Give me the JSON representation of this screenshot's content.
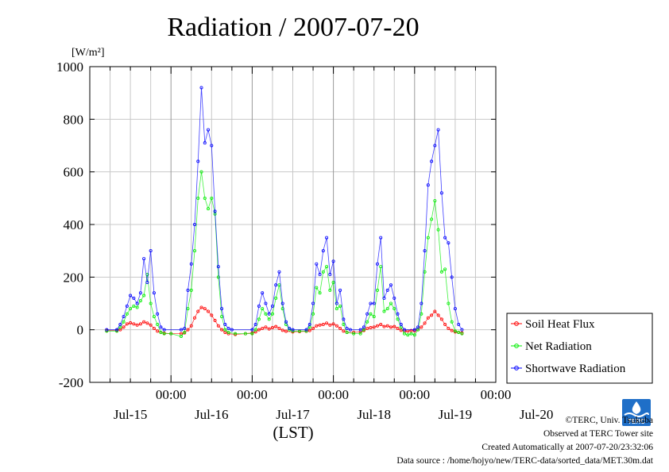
{
  "chart_data": {
    "type": "line",
    "title": "Radiation / 2007-07-20",
    "ylabel_unit": "[W/m²]",
    "xlabel": "(LST)",
    "ylim": [
      -200,
      1000
    ],
    "y_ticks": [
      "-200",
      "0",
      "200",
      "400",
      "600",
      "800",
      "1000"
    ],
    "x_ticks": [
      "00:00",
      "00:00",
      "00:00",
      "00:00",
      "00:00"
    ],
    "x_day_labels": [
      "Jul-15",
      "Jul-16",
      "Jul-17",
      "Jul-18",
      "Jul-19",
      "Jul-20"
    ],
    "grid": true,
    "legend_position": "right",
    "x_unit": "hours since 2007-07-14 00:00 LST",
    "series": [
      {
        "name": "Soil Heat Flux",
        "color": "#ff0000",
        "points": [
          [
            5,
            -3
          ],
          [
            8,
            -3
          ],
          [
            9,
            0
          ],
          [
            10,
            10
          ],
          [
            11,
            22
          ],
          [
            12,
            26
          ],
          [
            13,
            22
          ],
          [
            14,
            18
          ],
          [
            15,
            22
          ],
          [
            16,
            30
          ],
          [
            17,
            25
          ],
          [
            18,
            18
          ],
          [
            19,
            5
          ],
          [
            20,
            -5
          ],
          [
            21,
            -10
          ],
          [
            22,
            -13
          ],
          [
            24,
            -15
          ],
          [
            27,
            -15
          ],
          [
            28,
            -12
          ],
          [
            29,
            0
          ],
          [
            30,
            15
          ],
          [
            31,
            45
          ],
          [
            32,
            70
          ],
          [
            33,
            85
          ],
          [
            34,
            80
          ],
          [
            35,
            70
          ],
          [
            36,
            55
          ],
          [
            37,
            35
          ],
          [
            38,
            15
          ],
          [
            39,
            0
          ],
          [
            40,
            -10
          ],
          [
            41,
            -15
          ],
          [
            43,
            -18
          ],
          [
            46,
            -15
          ],
          [
            48,
            -12
          ],
          [
            49,
            -8
          ],
          [
            50,
            0
          ],
          [
            51,
            5
          ],
          [
            52,
            10
          ],
          [
            53,
            3
          ],
          [
            54,
            8
          ],
          [
            55,
            12
          ],
          [
            56,
            5
          ],
          [
            57,
            -2
          ],
          [
            58,
            -6
          ],
          [
            60,
            -8
          ],
          [
            62,
            -7
          ],
          [
            64,
            -6
          ],
          [
            65,
            -3
          ],
          [
            66,
            5
          ],
          [
            67,
            15
          ],
          [
            68,
            18
          ],
          [
            69,
            20
          ],
          [
            70,
            25
          ],
          [
            71,
            18
          ],
          [
            72,
            22
          ],
          [
            73,
            15
          ],
          [
            74,
            5
          ],
          [
            75,
            -5
          ],
          [
            76,
            -10
          ],
          [
            78,
            -10
          ],
          [
            80,
            -8
          ],
          [
            81,
            -3
          ],
          [
            82,
            5
          ],
          [
            83,
            8
          ],
          [
            84,
            10
          ],
          [
            85,
            15
          ],
          [
            86,
            20
          ],
          [
            87,
            12
          ],
          [
            88,
            15
          ],
          [
            89,
            10
          ],
          [
            90,
            12
          ],
          [
            91,
            5
          ],
          [
            92,
            -2
          ],
          [
            93,
            -5
          ],
          [
            94,
            -5
          ],
          [
            95,
            -3
          ],
          [
            96,
            -4
          ],
          [
            97,
            0
          ],
          [
            98,
            10
          ],
          [
            99,
            25
          ],
          [
            100,
            45
          ],
          [
            101,
            55
          ],
          [
            102,
            70
          ],
          [
            103,
            55
          ],
          [
            104,
            40
          ],
          [
            105,
            20
          ],
          [
            106,
            5
          ],
          [
            107,
            -3
          ],
          [
            108,
            -8
          ],
          [
            109,
            -10
          ],
          [
            110,
            -12
          ]
        ]
      },
      {
        "name": "Net Radiation",
        "color": "#00ee00",
        "points": [
          [
            5,
            -5
          ],
          [
            8,
            -5
          ],
          [
            9,
            10
          ],
          [
            10,
            30
          ],
          [
            11,
            60
          ],
          [
            12,
            80
          ],
          [
            13,
            90
          ],
          [
            14,
            85
          ],
          [
            15,
            110
          ],
          [
            16,
            130
          ],
          [
            17,
            210
          ],
          [
            18,
            100
          ],
          [
            19,
            50
          ],
          [
            20,
            20
          ],
          [
            21,
            -10
          ],
          [
            22,
            -15
          ],
          [
            24,
            -15
          ],
          [
            27,
            -25
          ],
          [
            28,
            -10
          ],
          [
            29,
            80
          ],
          [
            30,
            150
          ],
          [
            31,
            300
          ],
          [
            32,
            500
          ],
          [
            33,
            600
          ],
          [
            34,
            500
          ],
          [
            35,
            460
          ],
          [
            36,
            500
          ],
          [
            37,
            440
          ],
          [
            38,
            200
          ],
          [
            39,
            50
          ],
          [
            40,
            0
          ],
          [
            41,
            -10
          ],
          [
            43,
            -15
          ],
          [
            46,
            -15
          ],
          [
            48,
            -15
          ],
          [
            49,
            0
          ],
          [
            50,
            40
          ],
          [
            51,
            80
          ],
          [
            52,
            60
          ],
          [
            53,
            40
          ],
          [
            54,
            60
          ],
          [
            55,
            120
          ],
          [
            56,
            170
          ],
          [
            57,
            80
          ],
          [
            58,
            20
          ],
          [
            59,
            0
          ],
          [
            60,
            -5
          ],
          [
            62,
            -5
          ],
          [
            64,
            -5
          ],
          [
            65,
            10
          ],
          [
            66,
            60
          ],
          [
            67,
            160
          ],
          [
            68,
            140
          ],
          [
            69,
            220
          ],
          [
            70,
            240
          ],
          [
            71,
            150
          ],
          [
            72,
            180
          ],
          [
            73,
            80
          ],
          [
            74,
            90
          ],
          [
            75,
            20
          ],
          [
            76,
            -10
          ],
          [
            78,
            -15
          ],
          [
            80,
            -15
          ],
          [
            81,
            0
          ],
          [
            82,
            30
          ],
          [
            83,
            60
          ],
          [
            84,
            50
          ],
          [
            85,
            150
          ],
          [
            86,
            240
          ],
          [
            87,
            70
          ],
          [
            88,
            80
          ],
          [
            89,
            100
          ],
          [
            90,
            80
          ],
          [
            91,
            40
          ],
          [
            92,
            10
          ],
          [
            93,
            -15
          ],
          [
            94,
            -20
          ],
          [
            95,
            -15
          ],
          [
            96,
            -20
          ],
          [
            97,
            0
          ],
          [
            98,
            60
          ],
          [
            99,
            220
          ],
          [
            100,
            350
          ],
          [
            101,
            420
          ],
          [
            102,
            490
          ],
          [
            103,
            380
          ],
          [
            104,
            220
          ],
          [
            105,
            230
          ],
          [
            106,
            100
          ],
          [
            107,
            30
          ],
          [
            108,
            -5
          ],
          [
            109,
            -10
          ],
          [
            110,
            -15
          ]
        ]
      },
      {
        "name": "Shortwave Radiation",
        "color": "#0000ff",
        "points": [
          [
            5,
            0
          ],
          [
            8,
            0
          ],
          [
            9,
            20
          ],
          [
            10,
            50
          ],
          [
            11,
            90
          ],
          [
            12,
            130
          ],
          [
            13,
            120
          ],
          [
            14,
            100
          ],
          [
            15,
            140
          ],
          [
            16,
            270
          ],
          [
            17,
            180
          ],
          [
            18,
            300
          ],
          [
            19,
            140
          ],
          [
            20,
            60
          ],
          [
            21,
            10
          ],
          [
            22,
            0
          ],
          [
            27,
            0
          ],
          [
            28,
            5
          ],
          [
            29,
            150
          ],
          [
            30,
            250
          ],
          [
            31,
            400
          ],
          [
            32,
            640
          ],
          [
            33,
            920
          ],
          [
            34,
            710
          ],
          [
            35,
            760
          ],
          [
            36,
            700
          ],
          [
            37,
            450
          ],
          [
            38,
            240
          ],
          [
            39,
            80
          ],
          [
            40,
            20
          ],
          [
            41,
            5
          ],
          [
            42,
            0
          ],
          [
            48,
            0
          ],
          [
            49,
            20
          ],
          [
            50,
            90
          ],
          [
            51,
            140
          ],
          [
            52,
            100
          ],
          [
            53,
            60
          ],
          [
            54,
            90
          ],
          [
            55,
            170
          ],
          [
            56,
            220
          ],
          [
            57,
            100
          ],
          [
            58,
            30
          ],
          [
            59,
            5
          ],
          [
            60,
            0
          ],
          [
            64,
            0
          ],
          [
            65,
            20
          ],
          [
            66,
            100
          ],
          [
            67,
            250
          ],
          [
            68,
            210
          ],
          [
            69,
            300
          ],
          [
            70,
            350
          ],
          [
            71,
            210
          ],
          [
            72,
            260
          ],
          [
            73,
            100
          ],
          [
            74,
            150
          ],
          [
            75,
            40
          ],
          [
            76,
            5
          ],
          [
            77,
            0
          ],
          [
            80,
            0
          ],
          [
            81,
            10
          ],
          [
            82,
            60
          ],
          [
            83,
            100
          ],
          [
            84,
            100
          ],
          [
            85,
            250
          ],
          [
            86,
            350
          ],
          [
            87,
            120
          ],
          [
            88,
            150
          ],
          [
            89,
            170
          ],
          [
            90,
            120
          ],
          [
            91,
            60
          ],
          [
            92,
            20
          ],
          [
            93,
            0
          ],
          [
            96,
            0
          ],
          [
            97,
            10
          ],
          [
            98,
            100
          ],
          [
            99,
            300
          ],
          [
            100,
            550
          ],
          [
            101,
            640
          ],
          [
            102,
            700
          ],
          [
            103,
            760
          ],
          [
            104,
            520
          ],
          [
            105,
            350
          ],
          [
            106,
            330
          ],
          [
            107,
            200
          ],
          [
            108,
            80
          ],
          [
            109,
            20
          ],
          [
            110,
            0
          ]
        ]
      }
    ]
  },
  "footer": {
    "copyright": "©TERC, Univ. Tsukuba",
    "site": "Observed at TERC Tower site",
    "created": "Created Automatically at 2007-07-20/23:32:06",
    "source": "Data source : /home/hojyo/new/TERC-data/sorted_data/MET.30m.dat"
  },
  "logo": {
    "text": "TERC",
    "color": "#1f6fc8"
  }
}
